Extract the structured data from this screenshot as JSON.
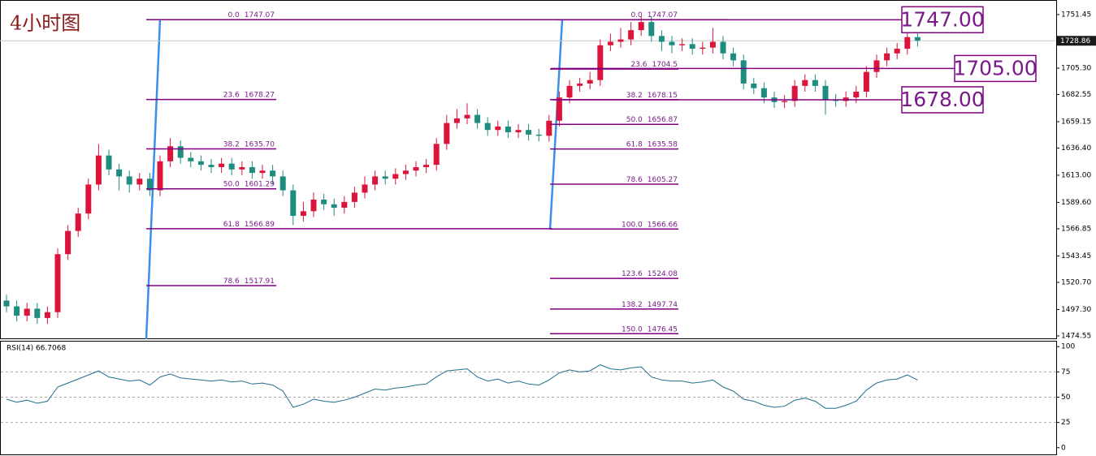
{
  "chart_data": [
    {
      "type": "candlestick",
      "title": "4小时图",
      "up_color": "#dc143c",
      "down_color": "#1e8c7e",
      "ylim": [
        1471.75,
        1764.0
      ],
      "yticks": [
        1751.45,
        {
          "value": 1705.3,
          "label": "1705.30"
        },
        1682.55,
        1659.15,
        {
          "value": 1636.4,
          "label": "1636.40"
        },
        {
          "value": 1613,
          "label": "1613.00"
        },
        {
          "value": 1589.6,
          "label": "1589.60"
        },
        1566.85,
        1543.45,
        {
          "value": 1520.7,
          "label": "1520.70"
        },
        {
          "value": 1497.3,
          "label": "1497.30"
        },
        1474.55
      ],
      "current_price": 1728.86,
      "open": [
        1505,
        1500,
        1492,
        1498,
        1490,
        1495,
        1545,
        1565,
        1580,
        1605,
        1630,
        1618,
        1612,
        1605,
        1610,
        1600,
        1625,
        1638,
        1628,
        1625,
        1622,
        1620,
        1623,
        1618,
        1620,
        1615,
        1617,
        1612,
        1600,
        1578,
        1582,
        1592,
        1588,
        1585,
        1590,
        1598,
        1605,
        1612,
        1610,
        1614,
        1617,
        1620,
        1622,
        1640,
        1658,
        1662,
        1665,
        1658,
        1652,
        1655,
        1650,
        1652,
        1648,
        1647,
        1660,
        1680,
        1690,
        1692,
        1695,
        1725,
        1728,
        1730,
        1738,
        1745,
        1733,
        1728,
        1725,
        1726,
        1722,
        1723,
        1728,
        1718,
        1712,
        1692,
        1688,
        1680,
        1676,
        1677,
        1690,
        1695,
        1690,
        1678,
        1677,
        1680,
        1685,
        1702,
        1712,
        1718,
        1722,
        1732
      ],
      "high": [
        1510,
        1505,
        1503,
        1503,
        1500,
        1550,
        1570,
        1585,
        1610,
        1640,
        1635,
        1623,
        1617,
        1615,
        1615,
        1630,
        1645,
        1643,
        1633,
        1630,
        1627,
        1628,
        1628,
        1625,
        1625,
        1622,
        1622,
        1617,
        1605,
        1590,
        1598,
        1597,
        1593,
        1595,
        1603,
        1612,
        1617,
        1617,
        1619,
        1622,
        1625,
        1627,
        1645,
        1665,
        1670,
        1675,
        1670,
        1663,
        1660,
        1660,
        1657,
        1657,
        1653,
        1665,
        1685,
        1695,
        1697,
        1702,
        1730,
        1735,
        1740,
        1745,
        1750,
        1750,
        1738,
        1733,
        1731,
        1731,
        1728,
        1740,
        1733,
        1723,
        1717,
        1697,
        1693,
        1685,
        1682,
        1695,
        1700,
        1700,
        1695,
        1683,
        1685,
        1690,
        1707,
        1717,
        1723,
        1727,
        1737,
        1737
      ],
      "low": [
        1495,
        1487,
        1487,
        1485,
        1485,
        1490,
        1540,
        1560,
        1575,
        1600,
        1613,
        1600,
        1598,
        1600,
        1595,
        1595,
        1620,
        1623,
        1620,
        1617,
        1615,
        1615,
        1613,
        1613,
        1610,
        1610,
        1605,
        1595,
        1570,
        1573,
        1577,
        1583,
        1578,
        1580,
        1585,
        1593,
        1600,
        1605,
        1605,
        1609,
        1612,
        1615,
        1617,
        1635,
        1653,
        1657,
        1653,
        1647,
        1647,
        1645,
        1645,
        1643,
        1642,
        1642,
        1655,
        1675,
        1685,
        1687,
        1690,
        1720,
        1723,
        1725,
        1733,
        1728,
        1720,
        1718,
        1720,
        1717,
        1717,
        1718,
        1713,
        1707,
        1687,
        1683,
        1675,
        1671,
        1671,
        1672,
        1685,
        1685,
        1665,
        1672,
        1672,
        1675,
        1680,
        1697,
        1707,
        1713,
        1717,
        1724
      ],
      "close": [
        1500,
        1492,
        1498,
        1490,
        1495,
        1545,
        1565,
        1580,
        1605,
        1630,
        1618,
        1612,
        1605,
        1610,
        1600,
        1625,
        1638,
        1628,
        1625,
        1622,
        1620,
        1623,
        1618,
        1620,
        1615,
        1617,
        1612,
        1600,
        1578,
        1582,
        1592,
        1588,
        1585,
        1590,
        1598,
        1605,
        1612,
        1610,
        1614,
        1617,
        1620,
        1622,
        1640,
        1658,
        1662,
        1665,
        1658,
        1652,
        1655,
        1650,
        1652,
        1648,
        1647,
        1660,
        1680,
        1690,
        1692,
        1695,
        1725,
        1728,
        1730,
        1738,
        1745,
        1733,
        1728,
        1725,
        1726,
        1722,
        1723,
        1728,
        1718,
        1712,
        1692,
        1688,
        1680,
        1676,
        1677,
        1690,
        1695,
        1690,
        1678,
        1677,
        1680,
        1685,
        1702,
        1712,
        1718,
        1722,
        1732,
        1729
      ],
      "fib_color": "#800080",
      "fib_sets": [
        {
          "levels": [
            {
              "level": "0.0",
              "price": 1747.07
            },
            {
              "level": "23.6",
              "price": 1678.27
            },
            {
              "level": "38.2",
              "price": {
                "value": 1635.7,
                "label": "1635.70"
              }
            },
            {
              "level": "50.0",
              "price": 1601.29
            },
            {
              "level": "61.8",
              "price": 1566.89
            },
            {
              "level": "78.6",
              "price": 1517.91
            }
          ]
        },
        {
          "levels": [
            {
              "level": "0.0",
              "price": 1747.07
            },
            {
              "level": "23.6",
              "price": 1704.5
            },
            {
              "level": "38.2",
              "price": 1678.15
            },
            {
              "level": "50.0",
              "price": 1656.87
            },
            {
              "level": "61.8",
              "price": 1635.58
            },
            {
              "level": "78.6",
              "price": 1605.27
            },
            {
              "level": "100.0",
              "price": 1566.66
            },
            {
              "level": "123.6",
              "price": 1524.08
            },
            {
              "level": "138.2",
              "price": 1497.74
            },
            {
              "level": "150.0",
              "price": 1476.45
            }
          ]
        }
      ],
      "key_levels": [
        {
          "value": 1747,
          "label": "1747.00"
        },
        {
          "value": 1705,
          "label": "1705.00"
        },
        {
          "value": 1678,
          "label": "1678.00"
        }
      ]
    },
    {
      "type": "line",
      "title": "RSI(14) 66.7068",
      "color": "#1f6f8b",
      "ylim": [
        -5,
        105
      ],
      "yticks": [
        100,
        75,
        50,
        25,
        0
      ],
      "levels": [
        75,
        50,
        25
      ],
      "values": [
        48,
        45,
        47,
        44,
        46,
        60,
        64,
        68,
        72,
        76,
        70,
        68,
        66,
        67,
        62,
        70,
        73,
        69,
        68,
        67,
        66,
        67,
        65,
        66,
        63,
        64,
        62,
        56,
        40,
        43,
        48,
        46,
        45,
        47,
        50,
        54,
        58,
        57,
        59,
        60,
        62,
        63,
        70,
        76,
        77,
        78,
        70,
        66,
        68,
        64,
        66,
        63,
        62,
        67,
        74,
        77,
        75,
        76,
        82,
        78,
        77,
        79,
        80,
        70,
        67,
        66,
        66,
        64,
        65,
        67,
        60,
        56,
        48,
        46,
        42,
        40,
        41,
        47,
        49,
        46,
        39,
        39,
        42,
        46,
        57,
        64,
        67,
        68,
        72,
        67
      ]
    }
  ]
}
